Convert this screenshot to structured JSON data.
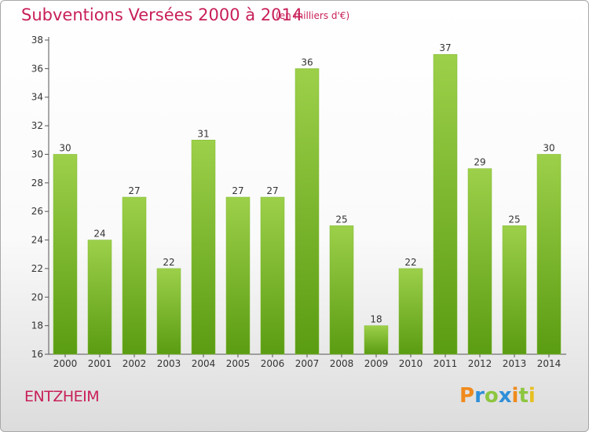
{
  "header": {
    "title": "Subventions Versées 2000 à 2014",
    "unit_note": "(en milliers d'€)"
  },
  "footer": {
    "commune": "ENTZHEIM",
    "logo_text": "Proxiti"
  },
  "colors": {
    "title": "#c8205a",
    "bar_light": "#9dd04a",
    "bar_dark": "#5a9c12",
    "axis": "#555555"
  },
  "chart_data": {
    "type": "bar",
    "categories": [
      "2000",
      "2001",
      "2002",
      "2003",
      "2004",
      "2005",
      "2006",
      "2007",
      "2008",
      "2009",
      "2010",
      "2011",
      "2012",
      "2013",
      "2014"
    ],
    "values": [
      30,
      24,
      27,
      22,
      31,
      27,
      27,
      36,
      25,
      18,
      22,
      37,
      29,
      25,
      30
    ],
    "ylim": [
      16,
      38
    ],
    "yticks": [
      16,
      18,
      20,
      22,
      24,
      26,
      28,
      30,
      32,
      34,
      36,
      38
    ],
    "grid": false,
    "data_labels": true
  }
}
